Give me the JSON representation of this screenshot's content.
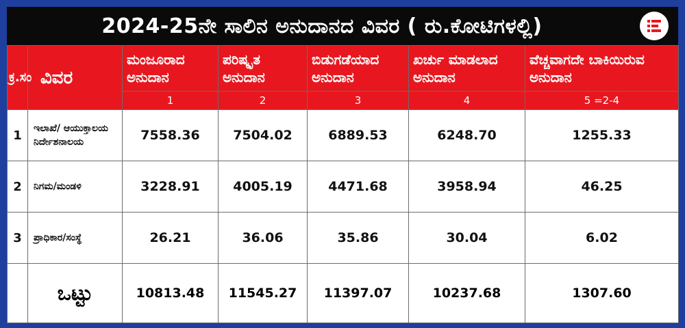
{
  "title": "2024-25ನೇ ಸಾಲಿನ ಅನುದಾನದ ವಿವರ ( ರು.ಕೋಟಿಗಳಲ್ಲಿ)",
  "logo_icon": "document-lines-icon",
  "colors": {
    "header_red": "#e8171f",
    "background_blue": "#1f3f9e",
    "title_bar": "#0a0a0a"
  },
  "table": {
    "headers": [
      "ಕ್ರ.ಸಂ",
      "ವಿವರ",
      "ಮಂಜೂರಾದ ಅನುದಾನ",
      "ಪರಿಷ್ಕೃತ ಅನುದಾನ",
      "ಬಿಡುಗಡೆಯಾದ ಅನುದಾನ",
      "ಖರ್ಚು ಮಾಡಲಾದ ಅನುದಾನ",
      "ವೆಚ್ಚವಾಗದೇ ಬಾಕಿಯಿರುವ ಅನುದಾನ"
    ],
    "col_numbers": [
      "1",
      "2",
      "3",
      "4",
      "5 =2-4"
    ],
    "rows": [
      {
        "sn": "1",
        "name": "ಇಲಾಖೆ/ ಆಯುಕ್ತಾಲಯ ನಿರ್ದೇಶನಾಲಯ",
        "values": [
          "7558.36",
          "7504.02",
          "6889.53",
          "6248.70",
          "1255.33"
        ]
      },
      {
        "sn": "2",
        "name": "ನಿಗಮ/ಮಂಡಳಿ",
        "values": [
          "3228.91",
          "4005.19",
          "4471.68",
          "3958.94",
          "46.25"
        ]
      },
      {
        "sn": "3",
        "name": "ಪ್ರಾಧಿಕಾರ/ಸಂಸ್ಥೆ",
        "values": [
          "26.21",
          "36.06",
          "35.86",
          "30.04",
          "6.02"
        ]
      }
    ],
    "total": {
      "name": "ಒಟ್ಟು",
      "values": [
        "10813.48",
        "11545.27",
        "11397.07",
        "10237.68",
        "1307.60"
      ]
    }
  }
}
